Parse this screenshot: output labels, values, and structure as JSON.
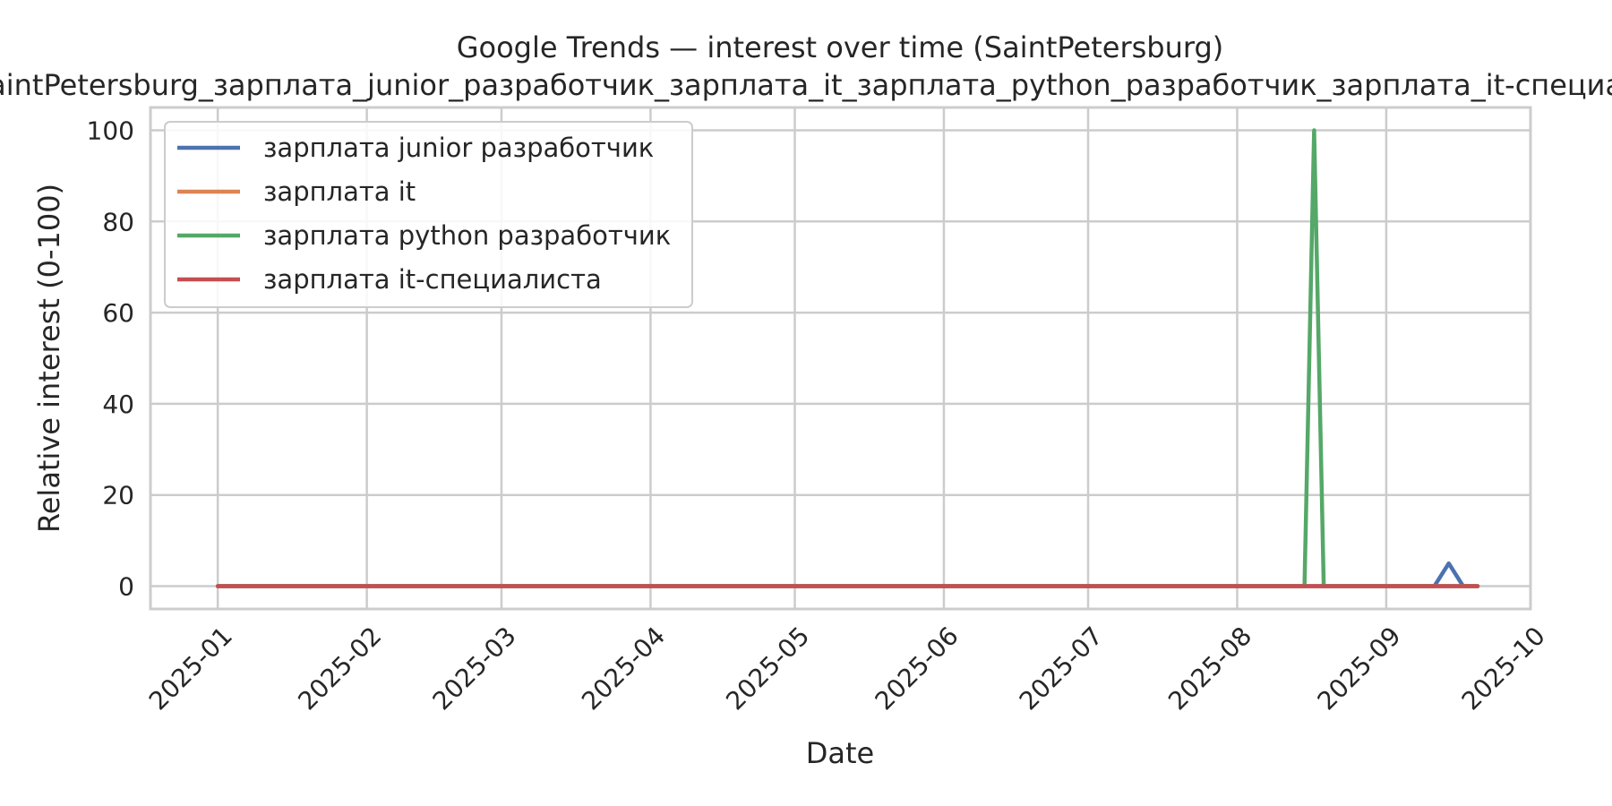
{
  "chart_data": {
    "type": "line",
    "title": "Google Trends — interest over time (SaintPetersburg)",
    "subtitle": "SaintPetersburg_зарплата_junior_разработчик_зарплата_it_зарплата_python_разработчик_зарплата_it-специалиста",
    "xlabel": "Date",
    "ylabel": "Relative interest (0-100)",
    "x_ticks": [
      "2025-01",
      "2025-02",
      "2025-03",
      "2025-04",
      "2025-05",
      "2025-06",
      "2025-07",
      "2025-08",
      "2025-09",
      "2025-10"
    ],
    "y_ticks": [
      0,
      20,
      40,
      60,
      80,
      100
    ],
    "xlim": [
      "2024-12-18",
      "2025-10-01"
    ],
    "ylim": [
      -5,
      105
    ],
    "grid": true,
    "legend_position": "top-left",
    "series": [
      {
        "name": "зарплата junior разработчик",
        "color": "#4c72b0",
        "points": [
          [
            "2025-01-01",
            0
          ],
          [
            "2025-09-11",
            0
          ],
          [
            "2025-09-14",
            5
          ],
          [
            "2025-09-17",
            0
          ],
          [
            "2025-09-20",
            0
          ]
        ]
      },
      {
        "name": "зарплата it",
        "color": "#dd8452",
        "points": [
          [
            "2025-01-01",
            0
          ],
          [
            "2025-09-20",
            0
          ]
        ]
      },
      {
        "name": "зарплата python разработчик",
        "color": "#55a868",
        "points": [
          [
            "2025-01-01",
            0
          ],
          [
            "2025-08-15",
            0
          ],
          [
            "2025-08-17",
            100
          ],
          [
            "2025-08-19",
            0
          ],
          [
            "2025-09-20",
            0
          ]
        ]
      },
      {
        "name": "зарплата it-специалиста",
        "color": "#c44e52",
        "points": [
          [
            "2025-01-01",
            0
          ],
          [
            "2025-09-20",
            0
          ]
        ]
      }
    ]
  }
}
